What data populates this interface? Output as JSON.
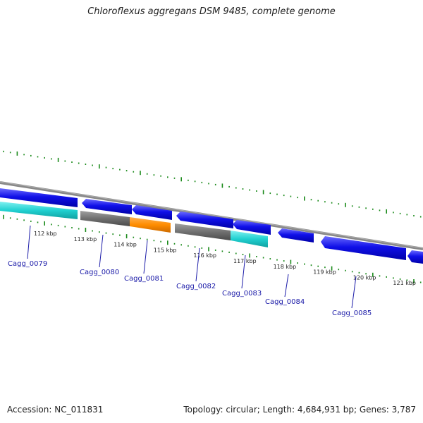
{
  "title": "Chloroflexus aggregans DSM 9485, complete genome",
  "footer": {
    "accession": "Accession: NC_011831",
    "summary": "Topology: circular; Length: 4,684,931 bp; Genes: 3,787"
  },
  "colors": {
    "forward_gene": "#1010e8",
    "cds_grey": "#707070",
    "cds_orange": "#ff8c00",
    "cds_cyan": "#20d0d0",
    "backbone": "#888888",
    "tick": "#1a8a1a",
    "label_line": "#1a1aa8"
  },
  "scale_labels": [
    "112 kbp",
    "113 kbp",
    "114 kbp",
    "115 kbp",
    "116 kbp",
    "117 kbp",
    "118 kbp",
    "119 kbp",
    "120 kbp",
    "121 kbp"
  ],
  "genes": [
    "Cagg_0079",
    "Cagg_0080",
    "Cagg_0081",
    "Cagg_0082",
    "Cagg_0083",
    "Cagg_0084",
    "Cagg_0085"
  ]
}
